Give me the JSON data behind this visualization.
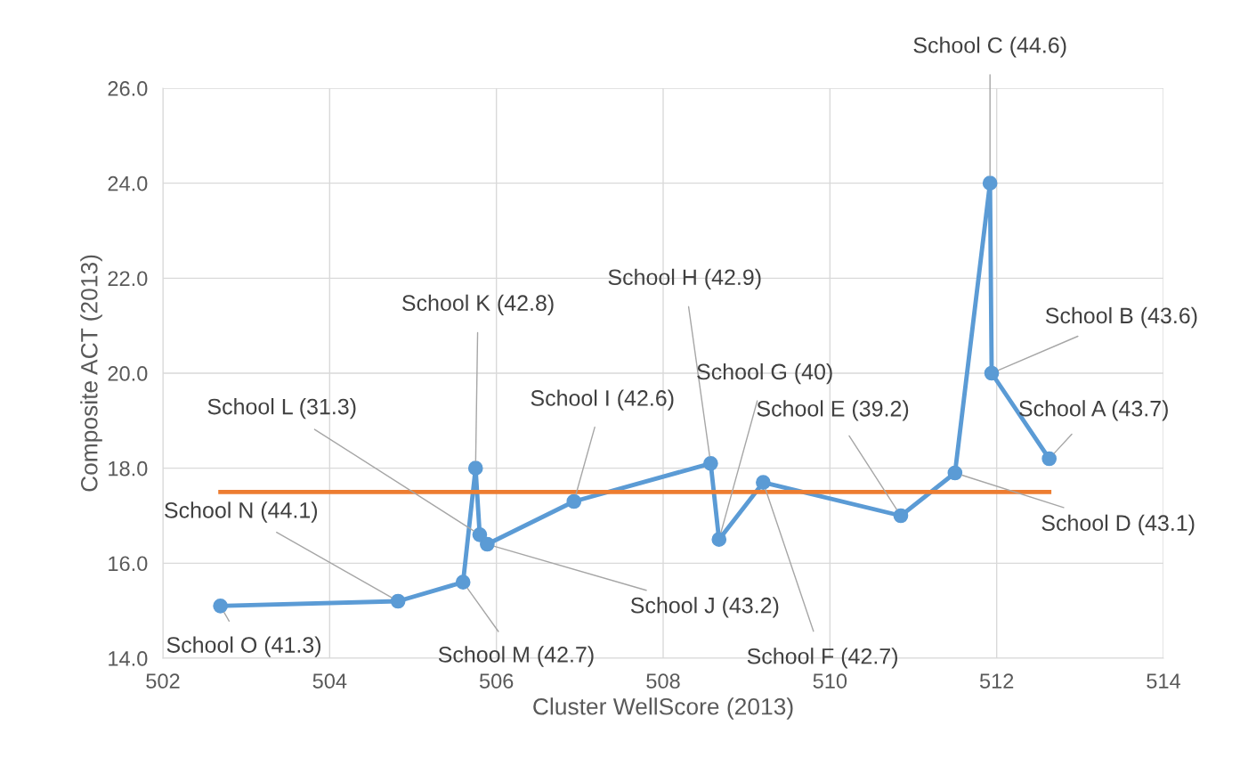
{
  "chart_data": {
    "type": "line",
    "xlabel": "Cluster WellScore (2013)",
    "ylabel": "Composite ACT (2013)",
    "series": [
      {
        "color": "#5b9bd5",
        "marker": "circle",
        "x": [
          502.69,
          504.82,
          505.6,
          505.75,
          505.8,
          505.89,
          506.93,
          508.57,
          508.67,
          509.2,
          510.85,
          511.5,
          511.92,
          511.94,
          512.63
        ],
        "values": [
          15.1,
          15.2,
          15.6,
          18.0,
          16.6,
          16.4,
          17.3,
          18.1,
          16.5,
          17.7,
          17.0,
          17.9,
          24.0,
          20.0,
          18.2
        ]
      },
      {
        "color": "#ed7d31",
        "marker": "none",
        "x": [
          502.69,
          512.63
        ],
        "values": [
          17.5,
          17.5
        ]
      }
    ],
    "annotations": [
      {
        "text": "School O (41.3)",
        "x": 502.69,
        "y": 15.1
      },
      {
        "text": "School N (44.1)",
        "x": 504.82,
        "y": 15.2
      },
      {
        "text": "School M (42.7)",
        "x": 505.6,
        "y": 15.6
      },
      {
        "text": "School K (42.8)",
        "x": 505.75,
        "y": 18.0
      },
      {
        "text": "School L (31.3)",
        "x": 505.8,
        "y": 16.6
      },
      {
        "text": "School J (43.2)",
        "x": 505.89,
        "y": 16.4
      },
      {
        "text": "School I (42.6)",
        "x": 506.93,
        "y": 17.3
      },
      {
        "text": "School H (42.9)",
        "x": 508.57,
        "y": 18.1
      },
      {
        "text": "School G (40)",
        "x": 508.67,
        "y": 16.5
      },
      {
        "text": "School F (42.7)",
        "x": 509.2,
        "y": 17.7
      },
      {
        "text": "School E (39.2)",
        "x": 510.85,
        "y": 17.0
      },
      {
        "text": "School D (43.1)",
        "x": 511.5,
        "y": 17.9
      },
      {
        "text": "School C (44.6)",
        "x": 511.92,
        "y": 24.0
      },
      {
        "text": "School B (43.6)",
        "x": 511.94,
        "y": 20.0
      },
      {
        "text": "School A (43.7)",
        "x": 512.63,
        "y": 18.2
      }
    ],
    "xlim": [
      502,
      514
    ],
    "xticks": [
      502,
      504,
      506,
      508,
      510,
      512,
      514
    ],
    "ylim": [
      14,
      26
    ],
    "yticks": [
      {
        "value": 14,
        "label": "14.0"
      },
      {
        "value": 16,
        "label": "16.0"
      },
      {
        "value": 18,
        "label": "18.0"
      },
      {
        "value": 20,
        "label": "20.0"
      },
      {
        "value": 22,
        "label": "22.0"
      },
      {
        "value": 24,
        "label": "24.0"
      },
      {
        "value": 26,
        "label": "26.0"
      }
    ],
    "grid": true,
    "legend": false
  }
}
